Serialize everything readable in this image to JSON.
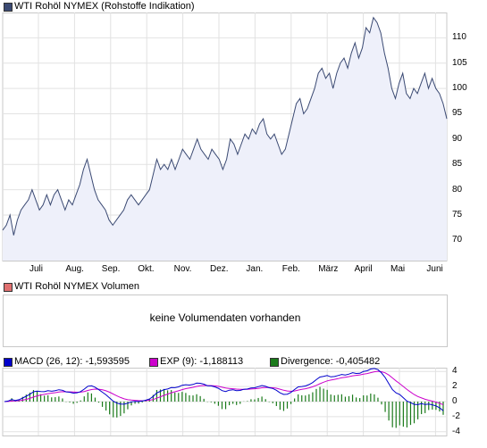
{
  "price_panel": {
    "legend_label": "WTI Rohöl NYMEX (Rohstoffe Indikation)",
    "legend_color": "#3b4a73"
  },
  "volume_panel": {
    "legend_label": "WTI Rohöl NYMEX Volumen",
    "legend_color": "#e07070",
    "message": "keine Volumendaten vorhanden"
  },
  "macd_panel": {
    "macd_label": "MACD (26, 12): -1,593595",
    "macd_color": "#0000cc",
    "exp_label": "EXP (9): -1,188113",
    "exp_color": "#cc00cc",
    "divergence_label": "Divergence: -0,405482",
    "divergence_color": "#1a7a1a"
  },
  "chart_data": [
    {
      "type": "area",
      "series": [
        {
          "name": "WTI Rohöl NYMEX (Rohstoffe Indikation)"
        }
      ],
      "x_tick_labels": [
        "Juli",
        "Aug.",
        "Sep.",
        "Okt.",
        "Nov.",
        "Dez.",
        "Jan.",
        "Feb.",
        "März",
        "April",
        "Mai",
        "Juni"
      ],
      "y_ticks": [
        70,
        75,
        80,
        85,
        90,
        95,
        100,
        105,
        110
      ],
      "ylim": [
        66,
        115
      ],
      "grid": true,
      "line_color": "#3b4a73",
      "fill_color": "#eef0fa",
      "points": [
        [
          0,
          72
        ],
        [
          2,
          73
        ],
        [
          4,
          75
        ],
        [
          6,
          71
        ],
        [
          8,
          74
        ],
        [
          10,
          76
        ],
        [
          12,
          77
        ],
        [
          14,
          78
        ],
        [
          16,
          80
        ],
        [
          18,
          78
        ],
        [
          20,
          76
        ],
        [
          22,
          77
        ],
        [
          24,
          79
        ],
        [
          26,
          77
        ],
        [
          28,
          79
        ],
        [
          30,
          80
        ],
        [
          32,
          78
        ],
        [
          34,
          76
        ],
        [
          36,
          78
        ],
        [
          38,
          77
        ],
        [
          40,
          79
        ],
        [
          42,
          81
        ],
        [
          44,
          84
        ],
        [
          46,
          86
        ],
        [
          48,
          83
        ],
        [
          50,
          80
        ],
        [
          52,
          78
        ],
        [
          54,
          77
        ],
        [
          56,
          76
        ],
        [
          58,
          74
        ],
        [
          60,
          73
        ],
        [
          62,
          74
        ],
        [
          64,
          75
        ],
        [
          66,
          76
        ],
        [
          68,
          78
        ],
        [
          70,
          79
        ],
        [
          72,
          78
        ],
        [
          74,
          77
        ],
        [
          76,
          78
        ],
        [
          78,
          79
        ],
        [
          80,
          80
        ],
        [
          82,
          83
        ],
        [
          84,
          86
        ],
        [
          86,
          84
        ],
        [
          88,
          85
        ],
        [
          90,
          84
        ],
        [
          92,
          86
        ],
        [
          94,
          84
        ],
        [
          96,
          86
        ],
        [
          98,
          88
        ],
        [
          100,
          87
        ],
        [
          102,
          86
        ],
        [
          104,
          88
        ],
        [
          106,
          90
        ],
        [
          108,
          88
        ],
        [
          110,
          87
        ],
        [
          112,
          86
        ],
        [
          114,
          88
        ],
        [
          116,
          87
        ],
        [
          118,
          86
        ],
        [
          120,
          84
        ],
        [
          122,
          86
        ],
        [
          124,
          90
        ],
        [
          126,
          89
        ],
        [
          128,
          87
        ],
        [
          130,
          89
        ],
        [
          132,
          91
        ],
        [
          134,
          90
        ],
        [
          136,
          92
        ],
        [
          138,
          91
        ],
        [
          140,
          93
        ],
        [
          142,
          94
        ],
        [
          144,
          91
        ],
        [
          146,
          90
        ],
        [
          148,
          91
        ],
        [
          150,
          89
        ],
        [
          152,
          87
        ],
        [
          154,
          88
        ],
        [
          156,
          91
        ],
        [
          158,
          94
        ],
        [
          160,
          97
        ],
        [
          162,
          98
        ],
        [
          164,
          95
        ],
        [
          166,
          96
        ],
        [
          168,
          98
        ],
        [
          170,
          100
        ],
        [
          172,
          103
        ],
        [
          174,
          104
        ],
        [
          176,
          102
        ],
        [
          178,
          103
        ],
        [
          180,
          100
        ],
        [
          182,
          103
        ],
        [
          184,
          105
        ],
        [
          186,
          106
        ],
        [
          188,
          104
        ],
        [
          190,
          107
        ],
        [
          192,
          109
        ],
        [
          194,
          106
        ],
        [
          196,
          108
        ],
        [
          198,
          112
        ],
        [
          200,
          111
        ],
        [
          202,
          114
        ],
        [
          204,
          113
        ],
        [
          206,
          111
        ],
        [
          208,
          107
        ],
        [
          210,
          104
        ],
        [
          212,
          100
        ],
        [
          214,
          98
        ],
        [
          216,
          101
        ],
        [
          218,
          103
        ],
        [
          220,
          99
        ],
        [
          222,
          98
        ],
        [
          224,
          100
        ],
        [
          226,
          99
        ],
        [
          228,
          101
        ],
        [
          230,
          103
        ],
        [
          232,
          100
        ],
        [
          234,
          102
        ],
        [
          236,
          100
        ],
        [
          238,
          99
        ],
        [
          240,
          97
        ],
        [
          242,
          94
        ]
      ]
    },
    {
      "type": "line",
      "series": [
        {
          "name": "MACD (26, 12)",
          "color": "#0000cc"
        },
        {
          "name": "EXP (9)",
          "color": "#cc00cc"
        },
        {
          "name": "Divergence",
          "color": "#1a7a1a"
        }
      ],
      "y_ticks": [
        4,
        2,
        0,
        -2,
        -4
      ],
      "ylim": [
        -4.5,
        4.5
      ]
    }
  ]
}
